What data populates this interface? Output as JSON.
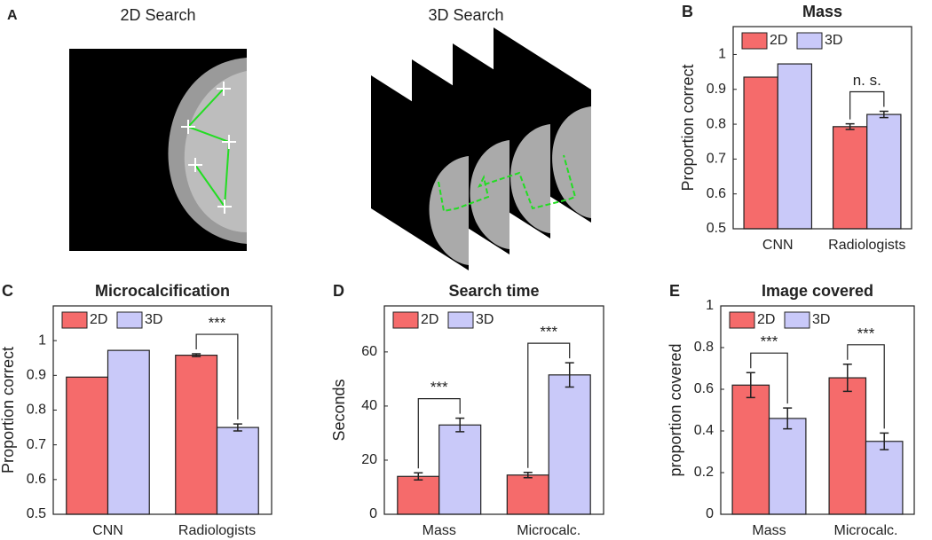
{
  "panel_a": {
    "label": "A",
    "titles": [
      "2D Search",
      "3D Search"
    ]
  },
  "chart_data": [
    {
      "type": "bar",
      "panel": "B",
      "title": "Mass",
      "ylabel": "Proportion correct",
      "categories": [
        "CNN",
        "Radiologists"
      ],
      "series": [
        {
          "name": "2D",
          "color": "#f56b6b",
          "values": [
            0.935,
            0.793
          ],
          "errors": [
            null,
            0.008
          ]
        },
        {
          "name": "3D",
          "color": "#c9c9f9",
          "values": [
            0.973,
            0.828
          ],
          "errors": [
            null,
            0.009
          ]
        }
      ],
      "significance": [
        null,
        "n. s."
      ],
      "ylim": [
        0.5,
        1.08
      ],
      "yticks": [
        0.5,
        0.6,
        0.7,
        0.8,
        0.9,
        1
      ],
      "legend": "upper left"
    },
    {
      "type": "bar",
      "panel": "C",
      "title": "Microcalcification",
      "ylabel": "Proportion correct",
      "categories": [
        "CNN",
        "Radiologists"
      ],
      "series": [
        {
          "name": "2D",
          "color": "#f56b6b",
          "values": [
            0.895,
            0.958
          ],
          "errors": [
            null,
            0.004
          ]
        },
        {
          "name": "3D",
          "color": "#c9c9f9",
          "values": [
            0.972,
            0.75
          ],
          "errors": [
            null,
            0.01
          ]
        }
      ],
      "significance": [
        null,
        "***"
      ],
      "ylim": [
        0.5,
        1.1
      ],
      "yticks": [
        0.5,
        0.6,
        0.7,
        0.8,
        0.9,
        1
      ],
      "legend": "upper left"
    },
    {
      "type": "bar",
      "panel": "D",
      "title": "Search time",
      "ylabel": "Seconds",
      "categories": [
        "Mass",
        "Microcalc."
      ],
      "series": [
        {
          "name": "2D",
          "color": "#f56b6b",
          "values": [
            14,
            14.5
          ],
          "errors": [
            1.3,
            1
          ]
        },
        {
          "name": "3D",
          "color": "#c9c9f9",
          "values": [
            33,
            51.5
          ],
          "errors": [
            2.5,
            4.5
          ]
        }
      ],
      "significance": [
        "***",
        "***"
      ],
      "ylim": [
        0,
        77
      ],
      "yticks": [
        0,
        20,
        40,
        60
      ],
      "legend": "upper left"
    },
    {
      "type": "bar",
      "panel": "E",
      "title": "Image covered",
      "ylabel": "proportion covered",
      "categories": [
        "Mass",
        "Microcalc."
      ],
      "series": [
        {
          "name": "2D",
          "color": "#f56b6b",
          "values": [
            0.62,
            0.655
          ],
          "errors": [
            0.06,
            0.065
          ]
        },
        {
          "name": "3D",
          "color": "#c9c9f9",
          "values": [
            0.46,
            0.35
          ],
          "errors": [
            0.05,
            0.04
          ]
        }
      ],
      "significance": [
        "***",
        "***"
      ],
      "ylim": [
        0,
        1
      ],
      "yticks": [
        0,
        0.2,
        0.4,
        0.6,
        0.8,
        1
      ],
      "legend": "upper left"
    }
  ]
}
